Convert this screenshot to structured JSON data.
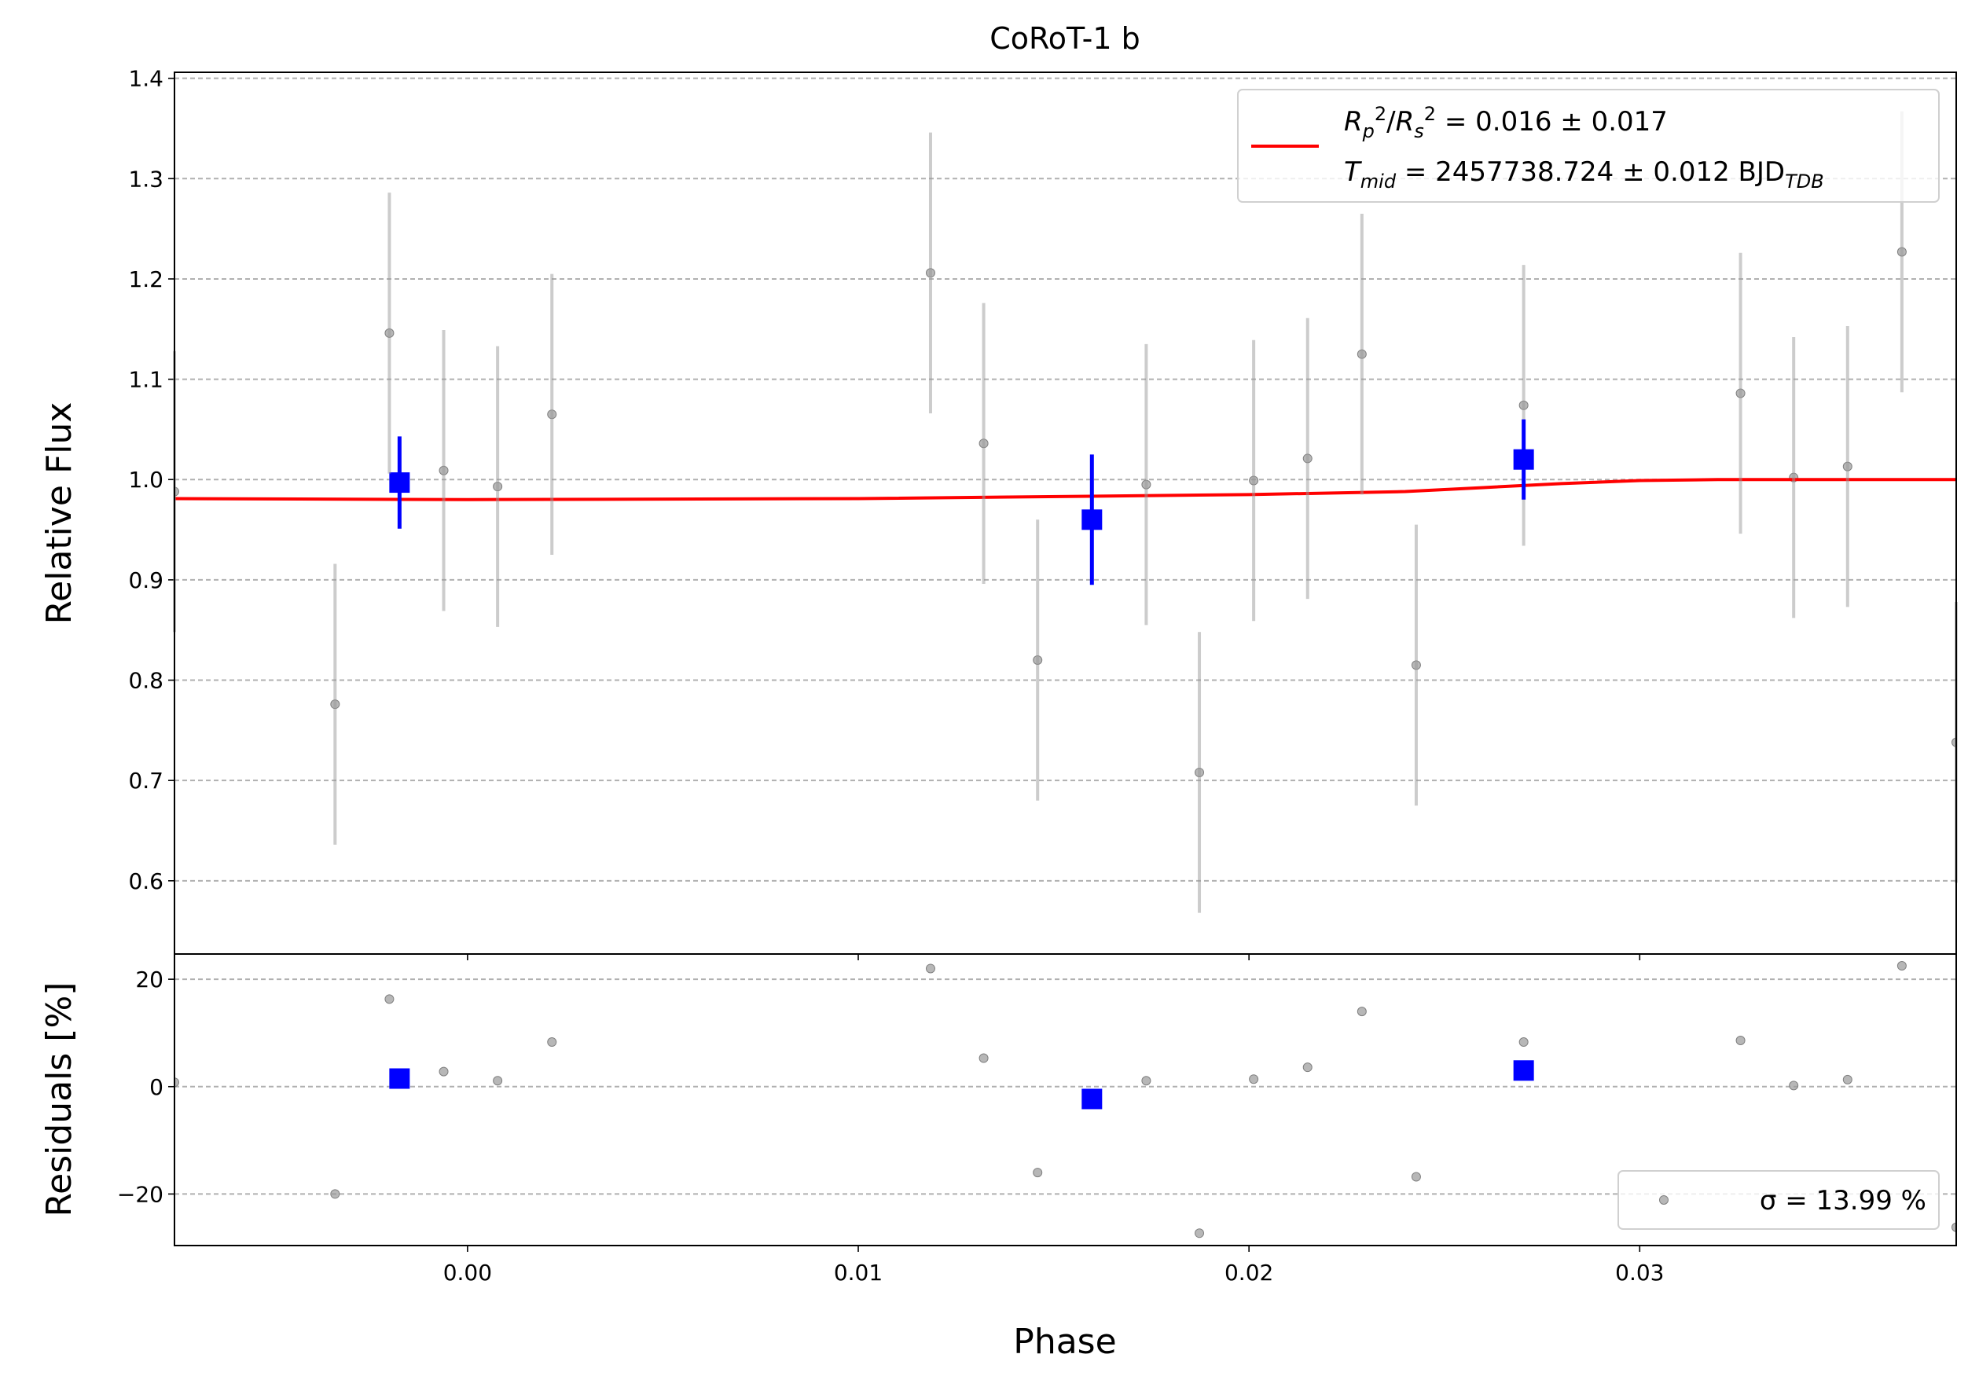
{
  "chart_data": [
    {
      "type": "scatter",
      "title": "CoRoT-1 b",
      "ylabel": "Relative Flux",
      "xlim": [
        -0.0075,
        0.0381
      ],
      "ylim": [
        0.527,
        1.406
      ],
      "yticks": [
        0.6,
        0.7,
        0.8,
        0.9,
        {
          "value": 1.0,
          "label": "1.0"
        },
        1.1,
        1.2,
        1.3,
        1.4
      ],
      "grid": true,
      "legend_loc": "upper right",
      "series": [
        {
          "color": "#999999",
          "marker": "circle",
          "x": [
            -0.0075,
            -0.00339,
            -0.002,
            -0.00061,
            0.00077,
            0.00216,
            0.01185,
            0.01321,
            0.01459,
            0.01737,
            0.01873,
            0.02012,
            0.0215,
            0.02289,
            0.02428,
            0.02703,
            0.03258,
            0.03394,
            0.03532,
            0.03671,
            0.0381
          ],
          "values": [
            0.988,
            0.776,
            1.146,
            1.009,
            0.993,
            1.065,
            1.206,
            1.036,
            0.82,
            0.995,
            0.708,
            0.999,
            1.021,
            1.125,
            0.815,
            1.074,
            1.086,
            1.002,
            1.013,
            1.227,
            0.738
          ],
          "errors": [
            0.14,
            0.14,
            0.14,
            0.14,
            0.14,
            0.14,
            0.14,
            0.14,
            0.14,
            0.14,
            0.14,
            0.14,
            0.14,
            0.14,
            0.14,
            0.14,
            0.14,
            0.14,
            0.14,
            0.14,
            0.14
          ]
        },
        {
          "color": "#0000ff",
          "marker": "square",
          "x": [
            -0.00174,
            0.01598,
            0.02703
          ],
          "values": [
            0.997,
            0.96,
            1.02
          ],
          "errors": [
            0.046,
            0.065,
            0.04
          ]
        },
        {
          "type": "line",
          "color": "#ff0000",
          "x": [
            -0.0075,
            0.0,
            0.01,
            0.02,
            0.024,
            0.026,
            0.028,
            0.03,
            0.032,
            0.0381
          ],
          "values": [
            0.981,
            0.98,
            0.981,
            0.985,
            0.988,
            0.992,
            0.996,
            0.999,
            1.0,
            1.0
          ],
          "legend": [
            [
              {
                "text": "R",
                "italic": true
              },
              {
                "text": "p",
                "italic": true,
                "sub": true
              },
              {
                "text": "2",
                "sup": true
              },
              {
                "text": "/"
              },
              {
                "text": "R",
                "italic": true
              },
              {
                "text": "s",
                "italic": true,
                "sub": true
              },
              {
                "text": "2",
                "sup": true
              },
              {
                "text": " = 0.016 ± 0.017"
              }
            ],
            [
              {
                "text": "T",
                "italic": true
              },
              {
                "text": "mid",
                "italic": true,
                "sub": true
              },
              {
                "text": " = 2457738.724 ± 0.012 BJD"
              },
              {
                "text": "TDB",
                "italic": true,
                "sub": true
              }
            ]
          ]
        }
      ]
    },
    {
      "type": "scatter",
      "xlabel": "Phase",
      "ylabel": "Residuals [%]",
      "xlim": [
        -0.0075,
        0.0381
      ],
      "ylim": [
        -29.6,
        24.7
      ],
      "xticks": [
        {
          "value": 0.0,
          "label": "0.00"
        },
        0.01,
        0.02,
        0.03
      ],
      "yticks": [
        {
          "value": -20,
          "label": "−20"
        },
        0,
        20
      ],
      "grid": true,
      "legend_loc": "lower right",
      "series": [
        {
          "name": "σ = 13.99 %",
          "color": "#999999",
          "marker": "circle",
          "x": [
            -0.0075,
            -0.00339,
            -0.002,
            -0.00061,
            0.00077,
            0.00216,
            0.01185,
            0.01321,
            0.01459,
            0.01737,
            0.01873,
            0.02012,
            0.0215,
            0.02289,
            0.02428,
            0.02703,
            0.03258,
            0.03394,
            0.03532,
            0.03671,
            0.0381
          ],
          "values": [
            0.8,
            -20,
            16.3,
            2.8,
            1.1,
            8.3,
            22,
            5.3,
            -16,
            1.1,
            -27.3,
            1.4,
            3.6,
            14,
            -16.8,
            8.3,
            8.6,
            0.2,
            1.3,
            22.5,
            -26.2
          ]
        },
        {
          "color": "#0000ff",
          "marker": "square",
          "x": [
            -0.00174,
            0.01598,
            0.02703
          ],
          "values": [
            1.5,
            -2.3,
            3.0
          ]
        }
      ]
    }
  ]
}
